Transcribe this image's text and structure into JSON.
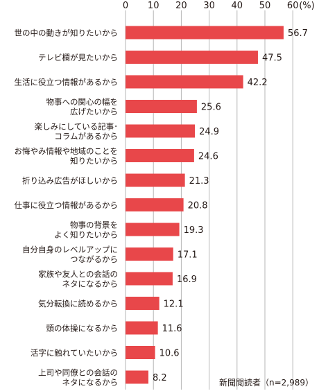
{
  "chart_data": {
    "type": "bar",
    "orientation": "horizontal",
    "title": "",
    "xlabel": "",
    "ylabel": "",
    "xlim": [
      0,
      60
    ],
    "unit_label": "(%)",
    "ticks": [
      "0",
      "10",
      "20",
      "30",
      "40",
      "50",
      "60"
    ],
    "tick_values": [
      0,
      10,
      20,
      30,
      40,
      50,
      60
    ],
    "grid": true,
    "bar_color": "#e8474a",
    "categories": [
      [
        "世の中の動きが知りたいから"
      ],
      [
        "テレビ欄が見たいから"
      ],
      [
        "生活に役立つ情報があるから"
      ],
      [
        "物事への関心の幅を",
        "広げたいから"
      ],
      [
        "楽しみにしている記事･",
        "コラムがあるから"
      ],
      [
        "お悔やみ情報や地域のことを",
        "知りたいから"
      ],
      [
        "折り込み広告がほしいから"
      ],
      [
        "仕事に役立つ情報があるから"
      ],
      [
        "物事の背景を",
        "よく知りたいから"
      ],
      [
        "自分自身のレベルアップに",
        "つながるから"
      ],
      [
        "家族や友人との会話の",
        "ネタになるから"
      ],
      [
        "気分転換に読めるから"
      ],
      [
        "頭の体操になるから"
      ],
      [
        "活字に触れていたいから"
      ],
      [
        "上司や同僚との会話の",
        "ネタになるから"
      ]
    ],
    "values": [
      56.7,
      47.5,
      42.2,
      25.6,
      24.9,
      24.6,
      21.3,
      20.8,
      19.3,
      17.1,
      16.9,
      12.1,
      11.6,
      10.6,
      8.2
    ],
    "value_labels": [
      "56.7",
      "47.5",
      "42.2",
      "25.6",
      "24.9",
      "24.6",
      "21.3",
      "20.8",
      "19.3",
      "17.1",
      "16.9",
      "12.1",
      "11.6",
      "10.6",
      "8.2"
    ],
    "note": "新聞閲読者（n=2,989）"
  }
}
